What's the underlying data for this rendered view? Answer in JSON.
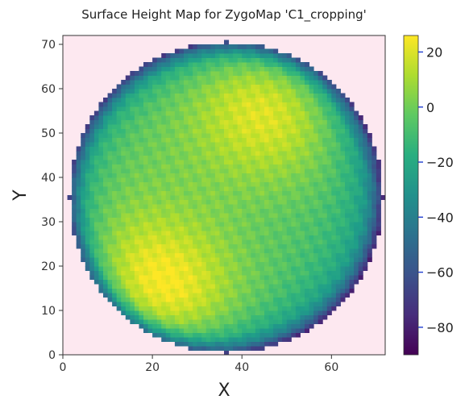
{
  "chart_data": {
    "type": "heatmap",
    "title": "Surface Height Map for ZygoMap 'C1_cropping'",
    "xlabel": "X",
    "ylabel": "Y",
    "xlim": [
      0,
      72
    ],
    "ylim": [
      0,
      72
    ],
    "x_ticks": [
      0,
      20,
      40,
      60
    ],
    "y_ticks": [
      0,
      10,
      20,
      30,
      40,
      50,
      60,
      70
    ],
    "grid": false,
    "background_color": "#fde8f0",
    "colormap": "viridis",
    "colorbar": {
      "range": [
        -90,
        26
      ],
      "ticks": [
        20,
        0,
        -20,
        -40,
        -60,
        -80
      ],
      "tick_color": "#1f3ed1"
    },
    "mask": {
      "shape": "disk",
      "center": [
        36.5,
        35.5
      ],
      "radius": 35
    },
    "surface_features": [
      {
        "kind": "high",
        "center": [
          21,
          14
        ],
        "peak": 26
      },
      {
        "kind": "high",
        "center": [
          46,
          56
        ],
        "peak": 22
      },
      {
        "kind": "rim_falloff",
        "edge_value": -80
      }
    ]
  }
}
